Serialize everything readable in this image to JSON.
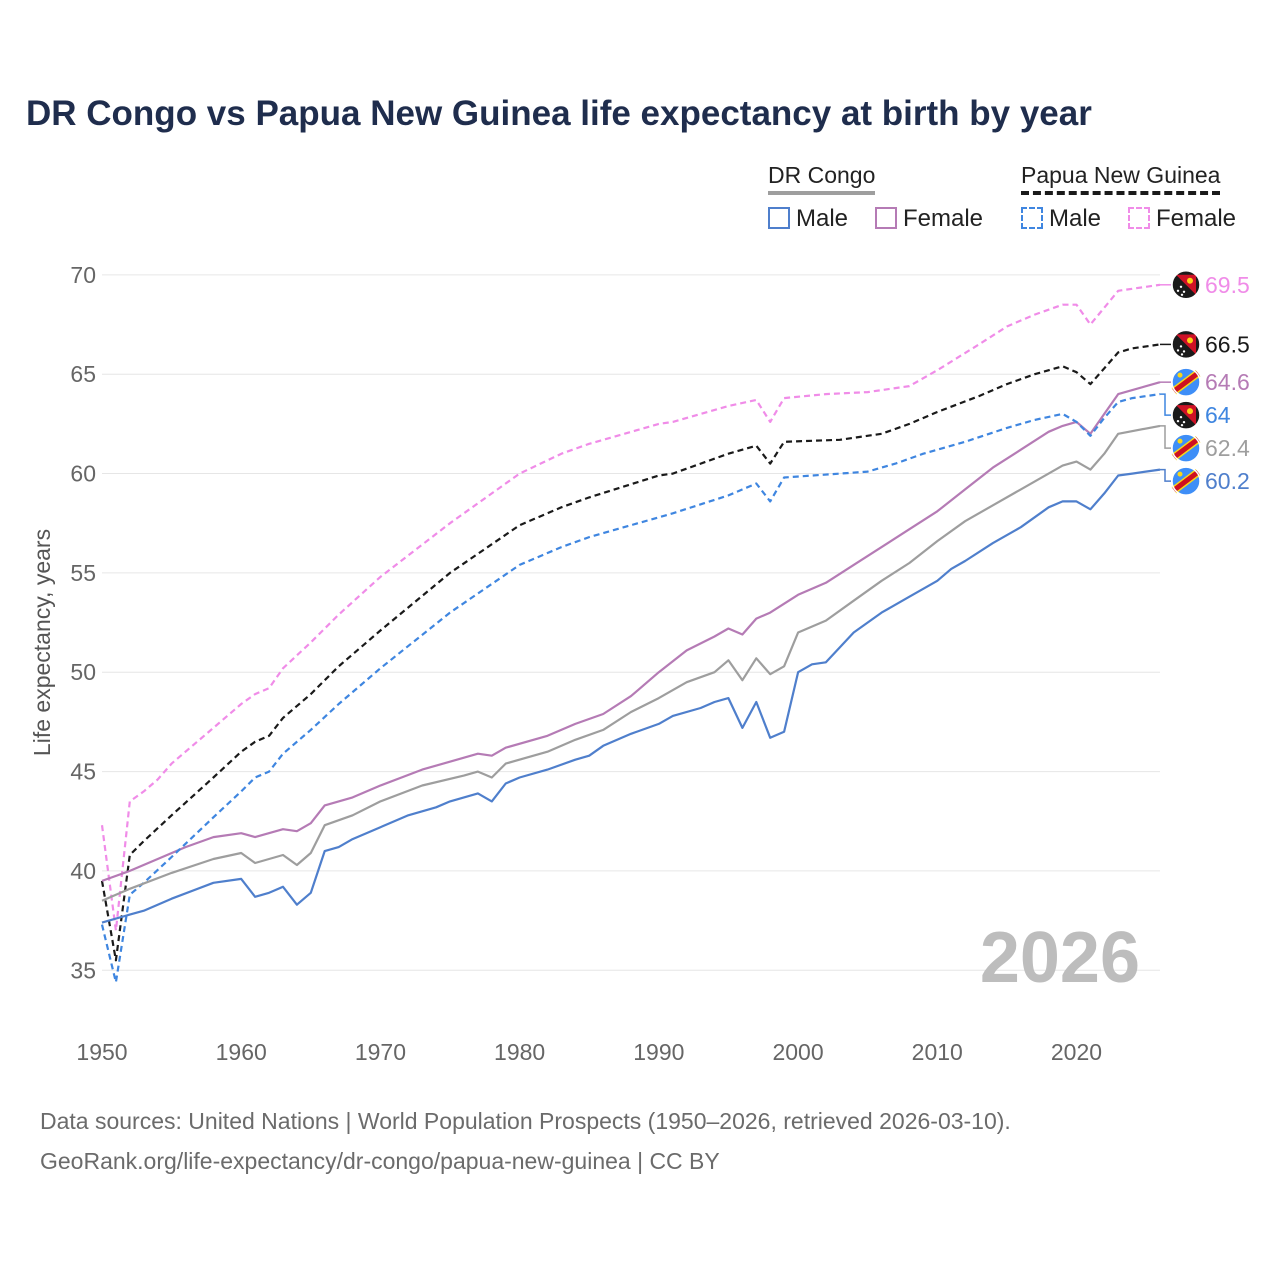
{
  "title": "DR Congo vs Papua New Guinea life expectancy at birth by year",
  "legend": {
    "groups": [
      {
        "name": "DR Congo",
        "style": "solid"
      },
      {
        "name": "Papua New Guinea",
        "style": "dashed"
      }
    ],
    "items": [
      {
        "label": "Male",
        "color": "#4f7fcc",
        "style": "solid"
      },
      {
        "label": "Female",
        "color": "#b57bb5",
        "style": "solid"
      },
      {
        "label": "Male",
        "color": "#3f86e0",
        "style": "dashed"
      },
      {
        "label": "Female",
        "color": "#f08ce8",
        "style": "dashed"
      }
    ]
  },
  "year_label": "2026",
  "footer": {
    "line1": "Data sources: United Nations | World Population Prospects (1950–2026, retrieved 2026-03-10).",
    "line2": "GeoRank.org/life-expectancy/dr-congo/papua-new-guinea | CC BY"
  },
  "chart_data": {
    "type": "line",
    "title": "DR Congo vs Papua New Guinea life expectancy at birth by year",
    "xlabel": "",
    "ylabel": "Life expectancy, years",
    "xlim": [
      1950,
      2026
    ],
    "ylim": [
      33,
      71
    ],
    "x_ticks": [
      1950,
      1960,
      1970,
      1980,
      1990,
      2000,
      2010,
      2020
    ],
    "y_ticks": [
      35,
      40,
      45,
      50,
      55,
      60,
      65,
      70
    ],
    "grid": true,
    "series": [
      {
        "name": "Papua New Guinea Female",
        "country": "Papua New Guinea",
        "sex": "Female",
        "color": "#f08ce8",
        "dash": true,
        "flag": "png",
        "end_label": "69.5",
        "points": [
          [
            1950,
            42.3
          ],
          [
            1951,
            37.0
          ],
          [
            1952,
            43.5
          ],
          [
            1953,
            44.0
          ],
          [
            1954,
            44.6
          ],
          [
            1955,
            45.4
          ],
          [
            1956,
            46.0
          ],
          [
            1958,
            47.2
          ],
          [
            1960,
            48.4
          ],
          [
            1961,
            48.9
          ],
          [
            1962,
            49.2
          ],
          [
            1963,
            50.2
          ],
          [
            1965,
            51.5
          ],
          [
            1967,
            52.9
          ],
          [
            1970,
            54.8
          ],
          [
            1975,
            57.5
          ],
          [
            1980,
            60.0
          ],
          [
            1983,
            61.0
          ],
          [
            1985,
            61.5
          ],
          [
            1990,
            62.5
          ],
          [
            1991,
            62.6
          ],
          [
            1995,
            63.4
          ],
          [
            1997,
            63.7
          ],
          [
            1998,
            62.6
          ],
          [
            1999,
            63.8
          ],
          [
            2002,
            64.0
          ],
          [
            2005,
            64.1
          ],
          [
            2008,
            64.4
          ],
          [
            2010,
            65.2
          ],
          [
            2013,
            66.5
          ],
          [
            2015,
            67.4
          ],
          [
            2017,
            68.0
          ],
          [
            2019,
            68.5
          ],
          [
            2020,
            68.5
          ],
          [
            2021,
            67.5
          ],
          [
            2023,
            69.2
          ],
          [
            2026,
            69.5
          ]
        ]
      },
      {
        "name": "Papua New Guinea Both",
        "country": "Papua New Guinea",
        "sex": "Both",
        "color": "#1a1a1a",
        "dash": true,
        "flag": "png",
        "end_label": "66.5",
        "points": [
          [
            1950,
            39.5
          ],
          [
            1951,
            35.5
          ],
          [
            1952,
            40.8
          ],
          [
            1953,
            41.5
          ],
          [
            1955,
            42.8
          ],
          [
            1958,
            44.7
          ],
          [
            1960,
            46.0
          ],
          [
            1961,
            46.5
          ],
          [
            1962,
            46.8
          ],
          [
            1963,
            47.7
          ],
          [
            1965,
            48.9
          ],
          [
            1967,
            50.3
          ],
          [
            1970,
            52.1
          ],
          [
            1975,
            55.0
          ],
          [
            1980,
            57.4
          ],
          [
            1983,
            58.3
          ],
          [
            1985,
            58.8
          ],
          [
            1990,
            59.9
          ],
          [
            1991,
            60.0
          ],
          [
            1995,
            61.0
          ],
          [
            1997,
            61.4
          ],
          [
            1998,
            60.5
          ],
          [
            1999,
            61.6
          ],
          [
            2003,
            61.7
          ],
          [
            2006,
            62.0
          ],
          [
            2008,
            62.5
          ],
          [
            2010,
            63.1
          ],
          [
            2013,
            63.9
          ],
          [
            2015,
            64.5
          ],
          [
            2017,
            65.0
          ],
          [
            2019,
            65.4
          ],
          [
            2020,
            65.1
          ],
          [
            2021,
            64.5
          ],
          [
            2022,
            65.3
          ],
          [
            2023,
            66.1
          ],
          [
            2024,
            66.3
          ],
          [
            2026,
            66.5
          ]
        ]
      },
      {
        "name": "DR Congo Female",
        "country": "DR Congo",
        "sex": "Female",
        "color": "#b57bb5",
        "dash": false,
        "flag": "cod",
        "end_label": "64.6",
        "points": [
          [
            1950,
            39.5
          ],
          [
            1952,
            40.0
          ],
          [
            1954,
            40.6
          ],
          [
            1956,
            41.2
          ],
          [
            1958,
            41.7
          ],
          [
            1960,
            41.9
          ],
          [
            1961,
            41.7
          ],
          [
            1963,
            42.1
          ],
          [
            1964,
            42.0
          ],
          [
            1965,
            42.4
          ],
          [
            1966,
            43.3
          ],
          [
            1968,
            43.7
          ],
          [
            1970,
            44.3
          ],
          [
            1973,
            45.1
          ],
          [
            1976,
            45.7
          ],
          [
            1977,
            45.9
          ],
          [
            1978,
            45.8
          ],
          [
            1979,
            46.2
          ],
          [
            1982,
            46.8
          ],
          [
            1984,
            47.4
          ],
          [
            1986,
            47.9
          ],
          [
            1988,
            48.8
          ],
          [
            1990,
            50.0
          ],
          [
            1992,
            51.1
          ],
          [
            1994,
            51.8
          ],
          [
            1995,
            52.2
          ],
          [
            1996,
            51.9
          ],
          [
            1997,
            52.7
          ],
          [
            1998,
            53.0
          ],
          [
            2000,
            53.9
          ],
          [
            2002,
            54.5
          ],
          [
            2004,
            55.4
          ],
          [
            2006,
            56.3
          ],
          [
            2008,
            57.2
          ],
          [
            2010,
            58.1
          ],
          [
            2012,
            59.2
          ],
          [
            2014,
            60.3
          ],
          [
            2016,
            61.2
          ],
          [
            2018,
            62.1
          ],
          [
            2019,
            62.4
          ],
          [
            2020,
            62.6
          ],
          [
            2021,
            62.0
          ],
          [
            2022,
            63.0
          ],
          [
            2023,
            64.0
          ],
          [
            2026,
            64.6
          ]
        ]
      },
      {
        "name": "Papua New Guinea Male",
        "country": "Papua New Guinea",
        "sex": "Male",
        "color": "#3f86e0",
        "dash": true,
        "flag": "png",
        "end_label": "64",
        "points": [
          [
            1950,
            37.3
          ],
          [
            1951,
            34.4
          ],
          [
            1952,
            38.8
          ],
          [
            1953,
            39.4
          ],
          [
            1955,
            40.7
          ],
          [
            1958,
            42.7
          ],
          [
            1960,
            44.0
          ],
          [
            1961,
            44.7
          ],
          [
            1962,
            45.0
          ],
          [
            1963,
            45.9
          ],
          [
            1965,
            47.1
          ],
          [
            1967,
            48.4
          ],
          [
            1970,
            50.2
          ],
          [
            1975,
            53.0
          ],
          [
            1980,
            55.4
          ],
          [
            1983,
            56.3
          ],
          [
            1985,
            56.8
          ],
          [
            1990,
            57.8
          ],
          [
            1991,
            58.0
          ],
          [
            1995,
            58.9
          ],
          [
            1997,
            59.5
          ],
          [
            1998,
            58.6
          ],
          [
            1999,
            59.8
          ],
          [
            2003,
            60.0
          ],
          [
            2005,
            60.1
          ],
          [
            2007,
            60.5
          ],
          [
            2009,
            61.0
          ],
          [
            2012,
            61.6
          ],
          [
            2015,
            62.3
          ],
          [
            2017,
            62.7
          ],
          [
            2019,
            63.0
          ],
          [
            2020,
            62.6
          ],
          [
            2021,
            61.9
          ],
          [
            2022,
            62.8
          ],
          [
            2023,
            63.6
          ],
          [
            2024,
            63.8
          ],
          [
            2026,
            64.0
          ]
        ]
      },
      {
        "name": "DR Congo Both",
        "country": "DR Congo",
        "sex": "Both",
        "color": "#9e9e9e",
        "dash": false,
        "flag": "cod",
        "end_label": "62.4",
        "points": [
          [
            1950,
            38.5
          ],
          [
            1952,
            39.1
          ],
          [
            1955,
            39.9
          ],
          [
            1958,
            40.6
          ],
          [
            1960,
            40.9
          ],
          [
            1961,
            40.4
          ],
          [
            1963,
            40.8
          ],
          [
            1964,
            40.3
          ],
          [
            1965,
            40.9
          ],
          [
            1966,
            42.3
          ],
          [
            1968,
            42.8
          ],
          [
            1970,
            43.5
          ],
          [
            1973,
            44.3
          ],
          [
            1976,
            44.8
          ],
          [
            1977,
            45.0
          ],
          [
            1978,
            44.7
          ],
          [
            1979,
            45.4
          ],
          [
            1982,
            46.0
          ],
          [
            1984,
            46.6
          ],
          [
            1986,
            47.1
          ],
          [
            1988,
            48.0
          ],
          [
            1990,
            48.7
          ],
          [
            1992,
            49.5
          ],
          [
            1994,
            50.0
          ],
          [
            1995,
            50.6
          ],
          [
            1996,
            49.6
          ],
          [
            1997,
            50.7
          ],
          [
            1998,
            49.9
          ],
          [
            1999,
            50.3
          ],
          [
            2000,
            52.0
          ],
          [
            2002,
            52.6
          ],
          [
            2004,
            53.6
          ],
          [
            2006,
            54.6
          ],
          [
            2008,
            55.5
          ],
          [
            2010,
            56.6
          ],
          [
            2012,
            57.6
          ],
          [
            2014,
            58.4
          ],
          [
            2016,
            59.2
          ],
          [
            2018,
            60.0
          ],
          [
            2019,
            60.4
          ],
          [
            2020,
            60.6
          ],
          [
            2021,
            60.2
          ],
          [
            2022,
            61.0
          ],
          [
            2023,
            62.0
          ],
          [
            2026,
            62.4
          ]
        ]
      },
      {
        "name": "DR Congo Male",
        "country": "DR Congo",
        "sex": "Male",
        "color": "#4f7fcc",
        "dash": false,
        "flag": "cod",
        "end_label": "60.2",
        "points": [
          [
            1950,
            37.4
          ],
          [
            1952,
            37.8
          ],
          [
            1953,
            38.0
          ],
          [
            1955,
            38.6
          ],
          [
            1958,
            39.4
          ],
          [
            1960,
            39.6
          ],
          [
            1961,
            38.7
          ],
          [
            1962,
            38.9
          ],
          [
            1963,
            39.2
          ],
          [
            1964,
            38.3
          ],
          [
            1965,
            38.9
          ],
          [
            1966,
            41.0
          ],
          [
            1967,
            41.2
          ],
          [
            1968,
            41.6
          ],
          [
            1970,
            42.2
          ],
          [
            1972,
            42.8
          ],
          [
            1974,
            43.2
          ],
          [
            1975,
            43.5
          ],
          [
            1977,
            43.9
          ],
          [
            1978,
            43.5
          ],
          [
            1979,
            44.4
          ],
          [
            1980,
            44.7
          ],
          [
            1982,
            45.1
          ],
          [
            1984,
            45.6
          ],
          [
            1985,
            45.8
          ],
          [
            1986,
            46.3
          ],
          [
            1988,
            46.9
          ],
          [
            1990,
            47.4
          ],
          [
            1991,
            47.8
          ],
          [
            1993,
            48.2
          ],
          [
            1994,
            48.5
          ],
          [
            1995,
            48.7
          ],
          [
            1996,
            47.2
          ],
          [
            1997,
            48.5
          ],
          [
            1998,
            46.7
          ],
          [
            1999,
            47.0
          ],
          [
            2000,
            50.0
          ],
          [
            2001,
            50.4
          ],
          [
            2002,
            50.5
          ],
          [
            2004,
            52.0
          ],
          [
            2006,
            53.0
          ],
          [
            2008,
            53.8
          ],
          [
            2010,
            54.6
          ],
          [
            2011,
            55.2
          ],
          [
            2012,
            55.6
          ],
          [
            2014,
            56.5
          ],
          [
            2016,
            57.3
          ],
          [
            2018,
            58.3
          ],
          [
            2019,
            58.6
          ],
          [
            2020,
            58.6
          ],
          [
            2021,
            58.2
          ],
          [
            2022,
            59.0
          ],
          [
            2023,
            59.9
          ],
          [
            2024,
            60.0
          ],
          [
            2026,
            60.2
          ]
        ]
      }
    ]
  }
}
